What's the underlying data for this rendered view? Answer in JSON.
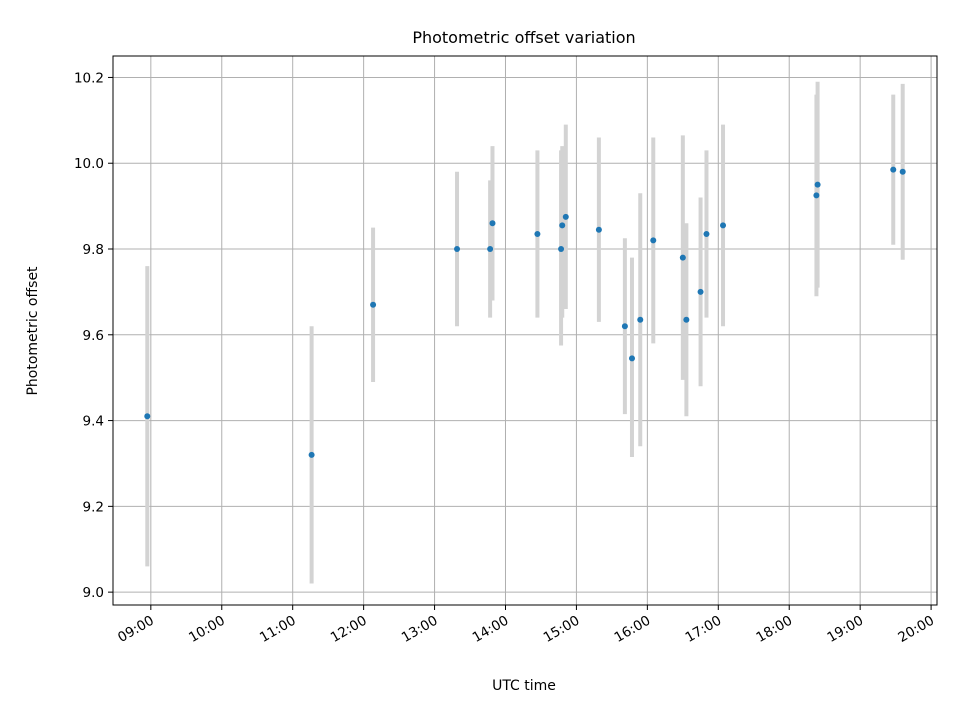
{
  "chart_data": {
    "type": "scatter",
    "title": "Photometric offset variation",
    "xlabel": "UTC time",
    "ylabel": "Photometric offset",
    "xlim": [
      "08:28",
      "20:05"
    ],
    "ylim": [
      8.97,
      10.25
    ],
    "grid": true,
    "x_ticks": [
      "09:00",
      "10:00",
      "11:00",
      "12:00",
      "13:00",
      "14:00",
      "15:00",
      "16:00",
      "17:00",
      "18:00",
      "19:00",
      "20:00"
    ],
    "y_ticks": [
      "9.0",
      "9.2",
      "9.4",
      "9.6",
      "9.8",
      "10.0",
      "10.2"
    ],
    "series": [
      {
        "marker_color": "#1f77b4",
        "errorbar_color": "#d3d3d3",
        "points": [
          {
            "x": "08:57",
            "y": 9.41,
            "ylow": 9.06,
            "yhigh": 9.76
          },
          {
            "x": "11:16",
            "y": 9.32,
            "ylow": 9.02,
            "yhigh": 9.62
          },
          {
            "x": "12:08",
            "y": 9.67,
            "ylow": 9.49,
            "yhigh": 9.85
          },
          {
            "x": "13:19",
            "y": 9.8,
            "ylow": 9.62,
            "yhigh": 9.98
          },
          {
            "x": "13:47",
            "y": 9.8,
            "ylow": 9.64,
            "yhigh": 9.96
          },
          {
            "x": "13:49",
            "y": 9.86,
            "ylow": 9.68,
            "yhigh": 10.04
          },
          {
            "x": "14:27",
            "y": 9.835,
            "ylow": 9.64,
            "yhigh": 10.03
          },
          {
            "x": "14:47",
            "y": 9.8,
            "ylow": 9.575,
            "yhigh": 10.03
          },
          {
            "x": "14:48",
            "y": 9.855,
            "ylow": 9.64,
            "yhigh": 10.04
          },
          {
            "x": "14:51",
            "y": 9.875,
            "ylow": 9.66,
            "yhigh": 10.09
          },
          {
            "x": "15:19",
            "y": 9.845,
            "ylow": 9.63,
            "yhigh": 10.06
          },
          {
            "x": "15:41",
            "y": 9.62,
            "ylow": 9.415,
            "yhigh": 9.825
          },
          {
            "x": "15:47",
            "y": 9.545,
            "ylow": 9.315,
            "yhigh": 9.78
          },
          {
            "x": "15:54",
            "y": 9.635,
            "ylow": 9.34,
            "yhigh": 9.93
          },
          {
            "x": "16:05",
            "y": 9.82,
            "ylow": 9.58,
            "yhigh": 10.06
          },
          {
            "x": "16:30",
            "y": 9.78,
            "ylow": 9.495,
            "yhigh": 10.065
          },
          {
            "x": "16:33",
            "y": 9.635,
            "ylow": 9.41,
            "yhigh": 9.86
          },
          {
            "x": "16:45",
            "y": 9.7,
            "ylow": 9.48,
            "yhigh": 9.92
          },
          {
            "x": "16:50",
            "y": 9.835,
            "ylow": 9.64,
            "yhigh": 10.03
          },
          {
            "x": "17:04",
            "y": 9.855,
            "ylow": 9.62,
            "yhigh": 10.09
          },
          {
            "x": "18:23",
            "y": 9.925,
            "ylow": 9.69,
            "yhigh": 10.16
          },
          {
            "x": "18:24",
            "y": 9.95,
            "ylow": 9.71,
            "yhigh": 10.19
          },
          {
            "x": "19:28",
            "y": 9.985,
            "ylow": 9.81,
            "yhigh": 10.16
          },
          {
            "x": "19:36",
            "y": 9.98,
            "ylow": 9.775,
            "yhigh": 10.185
          }
        ]
      }
    ]
  }
}
